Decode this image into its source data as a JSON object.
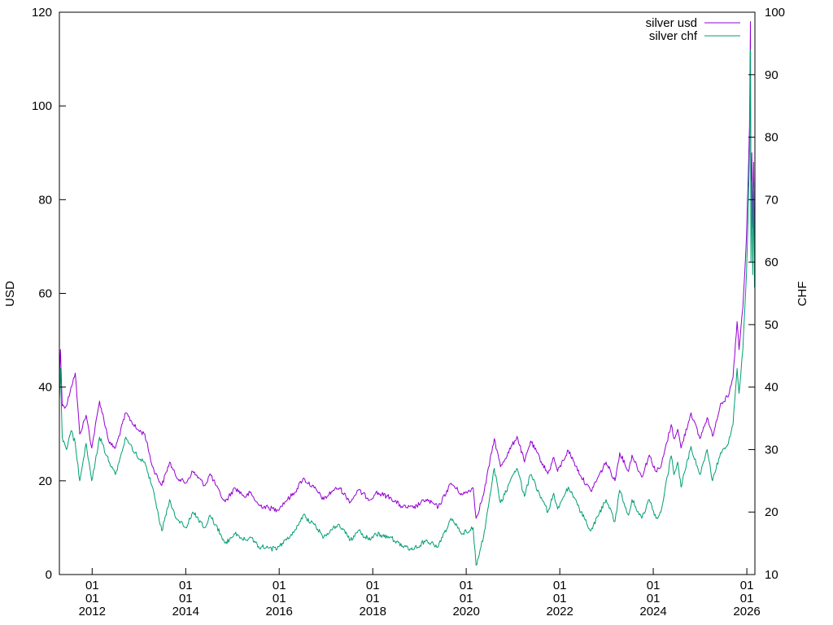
{
  "chart_data": {
    "type": "line",
    "title": "",
    "ylabel_left": "USD",
    "ylabel_right": "CHF",
    "ylim_left": [
      0,
      120
    ],
    "ylim_right": [
      10,
      100
    ],
    "yticks_left": [
      "0",
      "20",
      "40",
      "60",
      "80",
      "100",
      "120"
    ],
    "yticks_right": [
      "10",
      "20",
      "30",
      "40",
      "50",
      "60",
      "70",
      "80",
      "90",
      "100"
    ],
    "xlim": [
      "2011-04-20",
      "2026-03-05"
    ],
    "x_ticks": [
      {
        "date": "2012-01-01",
        "line1": "01",
        "line2": "01",
        "line3": "2012"
      },
      {
        "date": "2014-01-01",
        "line1": "01",
        "line2": "01",
        "line3": "2014"
      },
      {
        "date": "2016-01-01",
        "line1": "01",
        "line2": "01",
        "line3": "2016"
      },
      {
        "date": "2018-01-01",
        "line1": "01",
        "line2": "01",
        "line3": "2018"
      },
      {
        "date": "2020-01-01",
        "line1": "01",
        "line2": "01",
        "line3": "2020"
      },
      {
        "date": "2022-01-01",
        "line1": "01",
        "line2": "01",
        "line3": "2022"
      },
      {
        "date": "2024-01-01",
        "line1": "01",
        "line2": "01",
        "line3": "2024"
      },
      {
        "date": "2026-01-01",
        "line1": "01",
        "line2": "01",
        "line3": "2026"
      }
    ],
    "legend_position": "top-right",
    "series": [
      {
        "name": "silver usd",
        "axis": "left",
        "color": "#9400d3",
        "points": [
          [
            "2011-04-20",
            42
          ],
          [
            "2011-04-28",
            48
          ],
          [
            "2011-05-12",
            36
          ],
          [
            "2011-06-15",
            36
          ],
          [
            "2011-07-20",
            40
          ],
          [
            "2011-08-22",
            43
          ],
          [
            "2011-09-26",
            30
          ],
          [
            "2011-11-15",
            34
          ],
          [
            "2011-12-29",
            27
          ],
          [
            "2012-02-28",
            37
          ],
          [
            "2012-05-15",
            28
          ],
          [
            "2012-07-01",
            27
          ],
          [
            "2012-09-20",
            34.5
          ],
          [
            "2012-12-15",
            31
          ],
          [
            "2013-02-15",
            30
          ],
          [
            "2013-04-16",
            23
          ],
          [
            "2013-06-28",
            19
          ],
          [
            "2013-08-28",
            24
          ],
          [
            "2013-10-15",
            21
          ],
          [
            "2013-12-31",
            19.5
          ],
          [
            "2014-02-25",
            22
          ],
          [
            "2014-06-01",
            19
          ],
          [
            "2014-07-10",
            21.5
          ],
          [
            "2014-09-30",
            17
          ],
          [
            "2014-11-05",
            15.5
          ],
          [
            "2015-01-20",
            18.5
          ],
          [
            "2015-04-15",
            16.5
          ],
          [
            "2015-05-18",
            17.5
          ],
          [
            "2015-07-25",
            14.8
          ],
          [
            "2015-12-15",
            13.8
          ],
          [
            "2016-02-15",
            15.5
          ],
          [
            "2016-04-30",
            17.5
          ],
          [
            "2016-07-05",
            20.5
          ],
          [
            "2016-09-30",
            18.5
          ],
          [
            "2016-12-15",
            16
          ],
          [
            "2017-02-25",
            18
          ],
          [
            "2017-04-15",
            18.5
          ],
          [
            "2017-07-10",
            15.5
          ],
          [
            "2017-09-08",
            18
          ],
          [
            "2017-12-12",
            16
          ],
          [
            "2018-01-25",
            17.5
          ],
          [
            "2018-05-15",
            16.5
          ],
          [
            "2018-08-15",
            14.5
          ],
          [
            "2018-11-15",
            14.2
          ],
          [
            "2019-02-20",
            16
          ],
          [
            "2019-05-28",
            14.4
          ],
          [
            "2019-09-04",
            19.5
          ],
          [
            "2019-12-01",
            17
          ],
          [
            "2020-02-24",
            18.5
          ],
          [
            "2020-03-18",
            12
          ],
          [
            "2020-05-15",
            17
          ],
          [
            "2020-08-07",
            29
          ],
          [
            "2020-09-25",
            23
          ],
          [
            "2021-02-01",
            29.5
          ],
          [
            "2021-03-31",
            24
          ],
          [
            "2021-05-18",
            28.5
          ],
          [
            "2021-09-30",
            21.5
          ],
          [
            "2021-11-15",
            25
          ],
          [
            "2021-12-15",
            22
          ],
          [
            "2022-03-08",
            26.5
          ],
          [
            "2022-06-15",
            21
          ],
          [
            "2022-09-01",
            17.8
          ],
          [
            "2022-12-28",
            24
          ],
          [
            "2023-03-08",
            20
          ],
          [
            "2023-04-14",
            26
          ],
          [
            "2023-06-22",
            22
          ],
          [
            "2023-07-19",
            25.5
          ],
          [
            "2023-10-03",
            20.8
          ],
          [
            "2023-12-01",
            25.5
          ],
          [
            "2024-01-22",
            22
          ],
          [
            "2024-03-01",
            23
          ],
          [
            "2024-05-20",
            32
          ],
          [
            "2024-06-10",
            29
          ],
          [
            "2024-07-10",
            31
          ],
          [
            "2024-08-05",
            27
          ],
          [
            "2024-10-22",
            34.5
          ],
          [
            "2024-12-30",
            29
          ],
          [
            "2025-02-25",
            33.5
          ],
          [
            "2025-04-08",
            29.5
          ],
          [
            "2025-06-10",
            36.5
          ],
          [
            "2025-08-10",
            38
          ],
          [
            "2025-09-15",
            42
          ],
          [
            "2025-10-17",
            54
          ],
          [
            "2025-11-01",
            48
          ],
          [
            "2025-12-01",
            57
          ],
          [
            "2025-12-15",
            64
          ],
          [
            "2025-12-29",
            72
          ],
          [
            "2026-01-12",
            85
          ],
          [
            "2026-01-22",
            96
          ],
          [
            "2026-01-29",
            118
          ],
          [
            "2026-02-02",
            76
          ],
          [
            "2026-02-09",
            90
          ],
          [
            "2026-02-16",
            74
          ],
          [
            "2026-02-23",
            88
          ],
          [
            "2026-03-02",
            70
          ],
          [
            "2026-03-05",
            78
          ]
        ]
      },
      {
        "name": "silver chf",
        "axis": "right",
        "color": "#009e73",
        "points": [
          [
            "2011-04-20",
            38
          ],
          [
            "2011-04-28",
            43
          ],
          [
            "2011-05-12",
            32
          ],
          [
            "2011-06-15",
            30
          ],
          [
            "2011-07-20",
            33
          ],
          [
            "2011-08-22",
            31
          ],
          [
            "2011-09-26",
            25
          ],
          [
            "2011-11-15",
            31
          ],
          [
            "2011-12-29",
            25
          ],
          [
            "2012-02-28",
            32
          ],
          [
            "2012-05-15",
            28
          ],
          [
            "2012-07-01",
            26
          ],
          [
            "2012-09-20",
            32
          ],
          [
            "2012-12-15",
            29
          ],
          [
            "2013-02-15",
            28
          ],
          [
            "2013-04-16",
            24
          ],
          [
            "2013-06-28",
            17
          ],
          [
            "2013-08-28",
            22
          ],
          [
            "2013-10-15",
            19
          ],
          [
            "2013-12-31",
            17.5
          ],
          [
            "2014-02-25",
            20
          ],
          [
            "2014-06-01",
            17.5
          ],
          [
            "2014-07-10",
            19.5
          ],
          [
            "2014-09-30",
            16.5
          ],
          [
            "2014-11-05",
            15
          ],
          [
            "2015-01-20",
            16.5
          ],
          [
            "2015-04-15",
            15.5
          ],
          [
            "2015-05-18",
            16
          ],
          [
            "2015-07-25",
            14.5
          ],
          [
            "2015-12-15",
            14
          ],
          [
            "2016-02-15",
            15.5
          ],
          [
            "2016-04-30",
            17
          ],
          [
            "2016-07-05",
            19.5
          ],
          [
            "2016-09-30",
            18
          ],
          [
            "2016-12-15",
            16
          ],
          [
            "2017-02-25",
            17.5
          ],
          [
            "2017-04-15",
            18
          ],
          [
            "2017-07-10",
            15.5
          ],
          [
            "2017-09-08",
            17
          ],
          [
            "2017-12-12",
            15.5
          ],
          [
            "2018-01-25",
            16.5
          ],
          [
            "2018-05-15",
            16
          ],
          [
            "2018-08-15",
            14.5
          ],
          [
            "2018-11-15",
            14
          ],
          [
            "2019-02-20",
            15.5
          ],
          [
            "2019-05-28",
            14.5
          ],
          [
            "2019-09-04",
            19
          ],
          [
            "2019-12-01",
            16.5
          ],
          [
            "2020-02-24",
            17.5
          ],
          [
            "2020-03-18",
            11.5
          ],
          [
            "2020-05-15",
            16
          ],
          [
            "2020-08-07",
            27
          ],
          [
            "2020-09-25",
            21.5
          ],
          [
            "2021-02-01",
            27
          ],
          [
            "2021-03-31",
            22.5
          ],
          [
            "2021-05-18",
            26
          ],
          [
            "2021-09-30",
            20
          ],
          [
            "2021-11-15",
            23
          ],
          [
            "2021-12-15",
            20.5
          ],
          [
            "2022-03-08",
            24
          ],
          [
            "2022-06-15",
            20
          ],
          [
            "2022-09-01",
            17
          ],
          [
            "2022-12-28",
            22
          ],
          [
            "2023-03-08",
            18.5
          ],
          [
            "2023-04-14",
            23.5
          ],
          [
            "2023-06-22",
            19.5
          ],
          [
            "2023-07-19",
            22
          ],
          [
            "2023-10-03",
            19
          ],
          [
            "2023-12-01",
            22
          ],
          [
            "2024-01-22",
            19
          ],
          [
            "2024-03-01",
            20
          ],
          [
            "2024-05-20",
            29
          ],
          [
            "2024-06-10",
            26
          ],
          [
            "2024-07-10",
            28
          ],
          [
            "2024-08-05",
            24
          ],
          [
            "2024-10-22",
            30.5
          ],
          [
            "2024-12-30",
            26
          ],
          [
            "2025-02-25",
            30
          ],
          [
            "2025-04-08",
            25
          ],
          [
            "2025-06-10",
            29.5
          ],
          [
            "2025-08-10",
            31
          ],
          [
            "2025-09-15",
            34
          ],
          [
            "2025-10-17",
            43
          ],
          [
            "2025-11-01",
            39
          ],
          [
            "2025-12-01",
            46
          ],
          [
            "2025-12-15",
            52
          ],
          [
            "2025-12-29",
            58
          ],
          [
            "2026-01-12",
            68
          ],
          [
            "2026-01-22",
            78
          ],
          [
            "2026-01-29",
            94
          ],
          [
            "2026-02-02",
            60
          ],
          [
            "2026-02-09",
            73
          ],
          [
            "2026-02-16",
            58
          ],
          [
            "2026-02-23",
            72
          ],
          [
            "2026-03-02",
            56
          ],
          [
            "2026-03-05",
            62
          ]
        ]
      }
    ]
  }
}
